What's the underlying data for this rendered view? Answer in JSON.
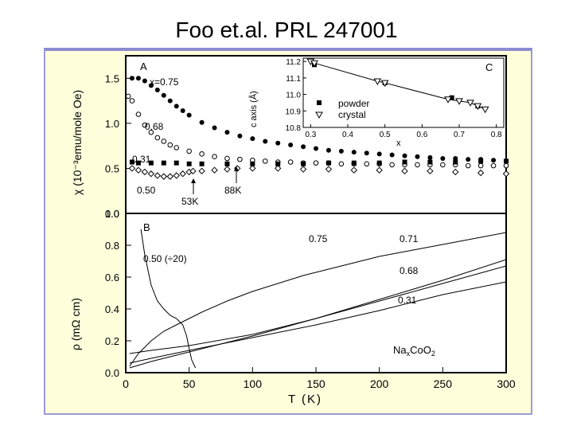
{
  "slide": {
    "title": "Foo et.al. PRL 247001"
  },
  "chart_data": [
    {
      "type": "scatter",
      "panel": "A",
      "ylabel": "χ (10⁻³emu/mole Oe)",
      "yticks": [
        "1.5",
        "1.0",
        "0.5",
        "0.0"
      ],
      "ylim": [
        0.0,
        1.75
      ],
      "xlim": [
        0,
        300
      ],
      "series": [
        {
          "name": "x=0.75",
          "marker": "filled-circle",
          "x": [
            5,
            10,
            15,
            20,
            25,
            30,
            35,
            40,
            45,
            50,
            60,
            70,
            80,
            90,
            100,
            110,
            120,
            130,
            140,
            150,
            160,
            170,
            180,
            190,
            200,
            210,
            220,
            230,
            240,
            250,
            260,
            270,
            280,
            290,
            300
          ],
          "values": [
            1.5,
            1.5,
            1.47,
            1.42,
            1.37,
            1.31,
            1.25,
            1.19,
            1.14,
            1.09,
            1.01,
            0.95,
            0.9,
            0.86,
            0.83,
            0.8,
            0.78,
            0.76,
            0.74,
            0.72,
            0.7,
            0.69,
            0.68,
            0.67,
            0.66,
            0.65,
            0.64,
            0.63,
            0.62,
            0.61,
            0.61,
            0.6,
            0.6,
            0.59,
            0.58
          ]
        },
        {
          "name": "0.68",
          "marker": "open-circle",
          "x": [
            2,
            5,
            10,
            15,
            20,
            25,
            30,
            35,
            40,
            50,
            60,
            70,
            80,
            90,
            100,
            110,
            120,
            130,
            140,
            150,
            160,
            170,
            180,
            190,
            200,
            210,
            220,
            230,
            240,
            250,
            260,
            270,
            280,
            290,
            300
          ],
          "values": [
            1.3,
            1.25,
            1.1,
            0.98,
            0.9,
            0.84,
            0.8,
            0.76,
            0.73,
            0.69,
            0.66,
            0.63,
            0.61,
            0.6,
            0.59,
            0.58,
            0.57,
            0.57,
            0.56,
            0.56,
            0.56,
            0.55,
            0.55,
            0.55,
            0.55,
            0.54,
            0.54,
            0.54,
            0.54,
            0.54,
            0.54,
            0.53,
            0.53,
            0.53,
            0.53
          ]
        },
        {
          "name": "0.31",
          "marker": "filled-square",
          "x": [
            5,
            10,
            20,
            30,
            40,
            50,
            60,
            80,
            100,
            120,
            140,
            160,
            180,
            200,
            220,
            240,
            260,
            280,
            300
          ],
          "values": [
            0.57,
            0.56,
            0.56,
            0.56,
            0.56,
            0.55,
            0.55,
            0.55,
            0.55,
            0.55,
            0.55,
            0.56,
            0.56,
            0.56,
            0.57,
            0.57,
            0.57,
            0.58,
            0.58
          ]
        },
        {
          "name": "0.50",
          "marker": "open-diamond",
          "x": [
            5,
            10,
            15,
            20,
            25,
            30,
            35,
            40,
            45,
            50,
            53,
            60,
            70,
            80,
            88,
            100,
            120,
            140,
            160,
            180,
            200,
            220,
            240,
            260,
            280,
            300
          ],
          "values": [
            0.5,
            0.48,
            0.46,
            0.44,
            0.42,
            0.41,
            0.41,
            0.42,
            0.44,
            0.46,
            0.47,
            0.47,
            0.48,
            0.49,
            0.5,
            0.5,
            0.5,
            0.49,
            0.49,
            0.48,
            0.48,
            0.47,
            0.47,
            0.46,
            0.45,
            0.44
          ]
        }
      ],
      "annotations": [
        "53K",
        "88K"
      ],
      "inset": {
        "panel": "C",
        "ylabel": "c axis (Å)",
        "xlabel": "x",
        "xticks": [
          "0.3",
          "0.4",
          "0.5",
          "0.6",
          "0.7",
          "0.8"
        ],
        "yticks": [
          "11.2",
          "11.1",
          "11.0",
          "10.9",
          "10.8"
        ],
        "xlim": [
          0.28,
          0.82
        ],
        "ylim": [
          10.8,
          11.22
        ],
        "legend": [
          "powder",
          "crystal"
        ],
        "series": [
          {
            "name": "powder",
            "marker": "filled-square",
            "x": [
              0.31,
              0.5,
              0.68,
              0.75
            ],
            "values": [
              11.18,
              11.07,
              10.98,
              10.93
            ]
          },
          {
            "name": "crystal",
            "marker": "open-triangle",
            "x": [
              0.3,
              0.31,
              0.48,
              0.5,
              0.67,
              0.7,
              0.73,
              0.75,
              0.77
            ],
            "values": [
              11.2,
              11.19,
              11.08,
              11.07,
              10.97,
              10.96,
              10.95,
              10.93,
              10.91
            ]
          }
        ]
      }
    },
    {
      "type": "line",
      "panel": "B",
      "xlabel": "T (K)",
      "ylabel": "ρ (mΩ cm)",
      "xticks": [
        "0",
        "50",
        "100",
        "150",
        "200",
        "250",
        "300"
      ],
      "yticks": [
        "1.0",
        "0.8",
        "0.6",
        "0.4",
        "0.2",
        "0.0"
      ],
      "xlim": [
        0,
        300
      ],
      "ylim": [
        0.0,
        1.0
      ],
      "compound": "NaxCoO2",
      "series": [
        {
          "name": "0.75",
          "x": [
            3,
            10,
            20,
            30,
            40,
            50,
            60,
            80,
            100,
            120,
            140,
            160,
            180,
            200,
            220,
            240,
            260,
            280,
            300
          ],
          "values": [
            0.04,
            0.12,
            0.2,
            0.26,
            0.3,
            0.34,
            0.38,
            0.45,
            0.51,
            0.56,
            0.61,
            0.65,
            0.69,
            0.73,
            0.76,
            0.79,
            0.82,
            0.85,
            0.88
          ]
        },
        {
          "name": "0.71",
          "x": [
            3,
            20,
            50,
            100,
            150,
            200,
            250,
            300
          ],
          "values": [
            0.12,
            0.14,
            0.17,
            0.24,
            0.34,
            0.46,
            0.58,
            0.71
          ]
        },
        {
          "name": "0.68",
          "x": [
            3,
            20,
            50,
            100,
            150,
            200,
            250,
            300
          ],
          "values": [
            0.03,
            0.07,
            0.13,
            0.23,
            0.34,
            0.45,
            0.56,
            0.67
          ]
        },
        {
          "name": "0.31",
          "x": [
            3,
            20,
            50,
            100,
            150,
            200,
            250,
            300
          ],
          "values": [
            0.06,
            0.09,
            0.14,
            0.22,
            0.3,
            0.39,
            0.49,
            0.57
          ]
        },
        {
          "name": "0.50 (÷20)",
          "x": [
            12,
            15,
            20,
            25,
            30,
            35,
            40,
            45,
            48,
            50,
            52,
            55
          ],
          "values": [
            0.9,
            0.74,
            0.55,
            0.45,
            0.4,
            0.36,
            0.34,
            0.3,
            0.23,
            0.15,
            0.08,
            0.03
          ]
        }
      ]
    }
  ]
}
